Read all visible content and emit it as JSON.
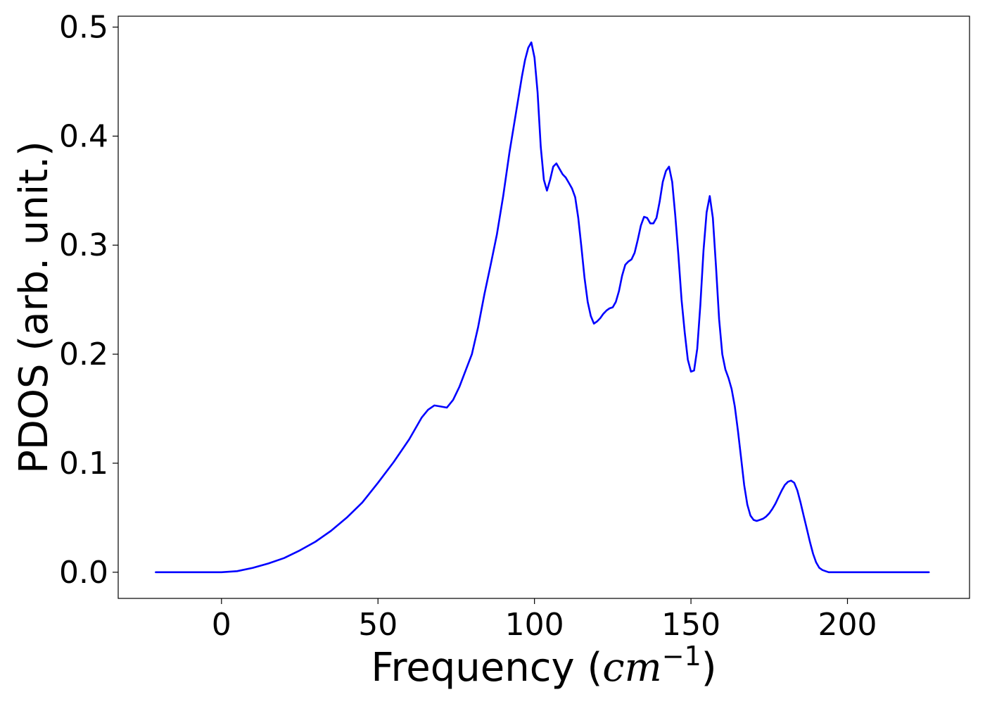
{
  "chart_data": {
    "type": "line",
    "title": "",
    "xlabel": {
      "main": "Frequency (",
      "var": "cm",
      "sup": "−1",
      "close": ")"
    },
    "ylabel": "PDOS (arb. unit.)",
    "xlim": [
      -33,
      239
    ],
    "ylim": [
      -0.024,
      0.51
    ],
    "xticks": [
      0,
      50,
      100,
      150,
      200
    ],
    "xtick_labels": [
      "0",
      "50",
      "100",
      "150",
      "200"
    ],
    "yticks": [
      0.0,
      0.1,
      0.2,
      0.3,
      0.4,
      0.5
    ],
    "ytick_labels": [
      "0.0",
      "0.1",
      "0.2",
      "0.3",
      "0.4",
      "0.5"
    ],
    "grid": false,
    "legend": "none",
    "series": [
      {
        "color": "#0000ff",
        "x": [
          -21,
          0,
          5,
          10,
          15,
          20,
          25,
          30,
          35,
          40,
          45,
          50,
          55,
          60,
          62,
          64,
          66,
          68,
          70,
          72,
          74,
          76,
          78,
          80,
          82,
          84,
          86,
          88,
          90,
          92,
          94,
          96,
          97,
          98,
          99,
          100,
          101,
          102,
          103,
          104,
          105,
          106,
          107,
          108,
          109,
          110,
          111,
          112,
          113,
          114,
          115,
          116,
          117,
          118,
          119,
          120,
          121,
          122,
          123,
          124,
          125,
          126,
          127,
          128,
          129,
          130,
          131,
          132,
          133,
          134,
          135,
          136,
          137,
          138,
          139,
          140,
          141,
          142,
          143,
          144,
          145,
          146,
          147,
          148,
          149,
          150,
          151,
          152,
          153,
          154,
          155,
          156,
          157,
          158,
          159,
          160,
          161,
          162,
          163,
          164,
          165,
          166,
          167,
          168,
          169,
          170,
          171,
          172,
          173,
          174,
          175,
          176,
          177,
          178,
          179,
          180,
          181,
          182,
          183,
          184,
          185,
          186,
          187,
          188,
          189,
          190,
          191,
          192,
          193,
          194,
          195,
          196,
          197,
          198,
          199,
          200,
          201,
          202,
          203,
          204,
          205,
          206,
          207,
          208,
          209,
          210,
          211,
          212,
          226
        ],
        "y": [
          0.0,
          0.0,
          0.001,
          0.004,
          0.008,
          0.013,
          0.02,
          0.028,
          0.038,
          0.05,
          0.064,
          0.082,
          0.101,
          0.122,
          0.132,
          0.142,
          0.149,
          0.153,
          0.152,
          0.151,
          0.158,
          0.17,
          0.185,
          0.2,
          0.225,
          0.255,
          0.282,
          0.31,
          0.345,
          0.385,
          0.42,
          0.455,
          0.47,
          0.481,
          0.486,
          0.472,
          0.44,
          0.39,
          0.36,
          0.35,
          0.36,
          0.372,
          0.375,
          0.37,
          0.365,
          0.362,
          0.357,
          0.352,
          0.344,
          0.325,
          0.298,
          0.27,
          0.248,
          0.235,
          0.228,
          0.23,
          0.233,
          0.237,
          0.24,
          0.242,
          0.243,
          0.248,
          0.258,
          0.272,
          0.282,
          0.285,
          0.287,
          0.293,
          0.305,
          0.318,
          0.326,
          0.325,
          0.32,
          0.32,
          0.325,
          0.34,
          0.358,
          0.368,
          0.372,
          0.358,
          0.327,
          0.29,
          0.25,
          0.22,
          0.195,
          0.184,
          0.185,
          0.205,
          0.245,
          0.295,
          0.33,
          0.345,
          0.325,
          0.28,
          0.232,
          0.2,
          0.186,
          0.178,
          0.168,
          0.152,
          0.13,
          0.105,
          0.08,
          0.062,
          0.052,
          0.048,
          0.047,
          0.048,
          0.049,
          0.051,
          0.054,
          0.058,
          0.063,
          0.069,
          0.075,
          0.08,
          0.083,
          0.084,
          0.082,
          0.075,
          0.064,
          0.052,
          0.04,
          0.028,
          0.017,
          0.009,
          0.004,
          0.002,
          0.001,
          0.0,
          0.0,
          0.0,
          0.0,
          0.0,
          0.0,
          0.0,
          0.0,
          0.0,
          0.0,
          0.0,
          0.0,
          0.0,
          0.0,
          0.0,
          0.0,
          0.0,
          0.0,
          0.0,
          0.0
        ]
      }
    ]
  }
}
